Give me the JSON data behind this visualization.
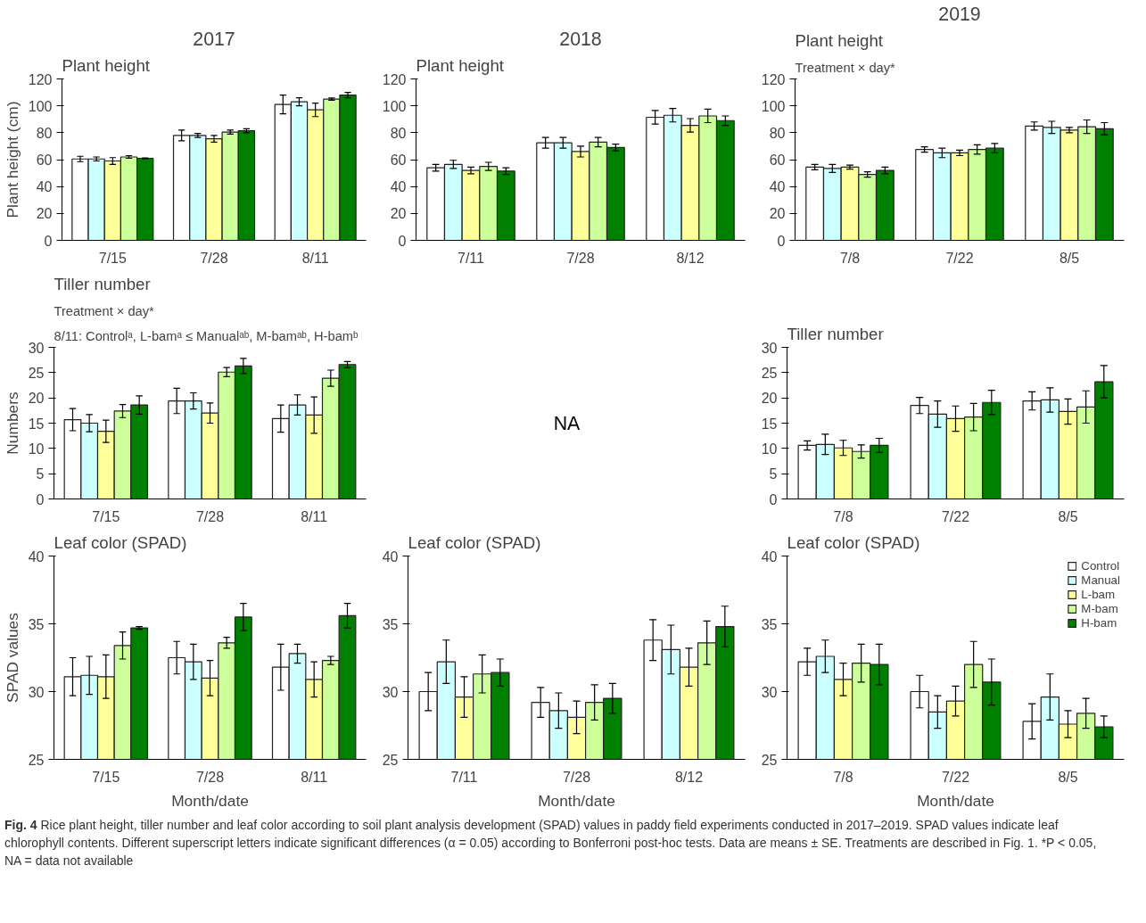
{
  "chart_data": [
    {
      "type": "bar",
      "title": "2017",
      "subtitle": "Plant height",
      "ylabel": "Plant height (cm)",
      "categories": [
        "7/15",
        "7/28",
        "8/11"
      ],
      "ylim": [
        0,
        120
      ],
      "yticks": [
        0,
        20,
        40,
        60,
        80,
        100,
        120
      ],
      "series": [
        {
          "color": "#ffffff",
          "values": [
            60.5,
            78,
            101
          ],
          "errors": [
            2,
            4,
            7
          ]
        },
        {
          "color": "#ccffff",
          "values": [
            60.5,
            78,
            103
          ],
          "errors": [
            1.5,
            1.5,
            3
          ]
        },
        {
          "color": "#ffff99",
          "values": [
            59,
            75.5,
            97
          ],
          "errors": [
            2.5,
            2.5,
            5
          ]
        },
        {
          "color": "#ccff99",
          "values": [
            62,
            80.5,
            105
          ],
          "errors": [
            1,
            1.5,
            0.8
          ]
        },
        {
          "color": "#008000",
          "values": [
            61,
            81.5,
            108
          ],
          "errors": [
            0.3,
            1.5,
            2
          ]
        }
      ]
    },
    {
      "type": "bar",
      "title": "2018",
      "subtitle": "Plant height",
      "categories": [
        "7/11",
        "7/28",
        "8/12"
      ],
      "ylim": [
        0,
        120
      ],
      "yticks": [
        0,
        20,
        40,
        60,
        80,
        100,
        120
      ],
      "series": [
        {
          "color": "#ffffff",
          "values": [
            54,
            72.5,
            91.5
          ],
          "errors": [
            2.5,
            4,
            5
          ]
        },
        {
          "color": "#ccffff",
          "values": [
            56.5,
            72.5,
            93
          ],
          "errors": [
            3,
            4,
            5
          ]
        },
        {
          "color": "#ffff99",
          "values": [
            52,
            66,
            85.5
          ],
          "errors": [
            2.5,
            4,
            5
          ]
        },
        {
          "color": "#ccff99",
          "values": [
            55,
            73,
            92.5
          ],
          "errors": [
            3,
            3.5,
            5
          ]
        },
        {
          "color": "#008000",
          "values": [
            51.5,
            69,
            89
          ],
          "errors": [
            2.5,
            2.5,
            3.5
          ]
        }
      ]
    },
    {
      "type": "bar",
      "title": "2019",
      "subtitle": "Plant height",
      "annotations": [
        "Treatment × day*"
      ],
      "categories": [
        "7/8",
        "7/22",
        "8/5"
      ],
      "ylim": [
        0,
        120
      ],
      "yticks": [
        0,
        20,
        40,
        60,
        80,
        100,
        120
      ],
      "series": [
        {
          "color": "#ffffff",
          "values": [
            54.5,
            67.5,
            85
          ],
          "errors": [
            2,
            2,
            3
          ]
        },
        {
          "color": "#ccffff",
          "values": [
            53.5,
            65,
            84
          ],
          "errors": [
            3,
            3.5,
            4.5
          ]
        },
        {
          "color": "#ffff99",
          "values": [
            54.5,
            65,
            82
          ],
          "errors": [
            1.5,
            2,
            2
          ]
        },
        {
          "color": "#ccff99",
          "values": [
            49,
            67.5,
            84.5
          ],
          "errors": [
            2,
            3.5,
            5
          ]
        },
        {
          "color": "#008000",
          "values": [
            52,
            68.5,
            83
          ],
          "errors": [
            2.5,
            3.5,
            4.5
          ]
        }
      ]
    },
    {
      "type": "bar",
      "title": "Tiller number",
      "ylabel": "Numbers",
      "annotations": [
        "Treatment × day*",
        "8/11: Controlᵃ, L-bamᵃ ≤ Manualᵃᵇ, M-bamᵃᵇ, H-bamᵇ"
      ],
      "categories": [
        "7/15",
        "7/28",
        "8/11"
      ],
      "ylim": [
        0,
        30
      ],
      "yticks": [
        0,
        5,
        10,
        15,
        20,
        25,
        30
      ],
      "series": [
        {
          "color": "#ffffff",
          "values": [
            15.7,
            19.4,
            15.9
          ],
          "errors": [
            2.2,
            2.5,
            2.7
          ]
        },
        {
          "color": "#ccffff",
          "values": [
            15,
            19.4,
            18.6
          ],
          "errors": [
            1.7,
            1.6,
            2
          ]
        },
        {
          "color": "#ffff99",
          "values": [
            13.4,
            17,
            16.6
          ],
          "errors": [
            2.2,
            2,
            3.6
          ]
        },
        {
          "color": "#ccff99",
          "values": [
            17.4,
            25.1,
            23.9
          ],
          "errors": [
            1.3,
            0.9,
            1.6
          ]
        },
        {
          "color": "#008000",
          "values": [
            18.6,
            26.3,
            26.6
          ],
          "errors": [
            1.8,
            1.5,
            0.6
          ]
        }
      ]
    },
    {
      "type": "other",
      "annotations": [
        "NA"
      ]
    },
    {
      "type": "bar",
      "title": "Tiller number",
      "categories": [
        "7/8",
        "7/22",
        "8/5"
      ],
      "ylim": [
        0,
        30
      ],
      "yticks": [
        0,
        5,
        10,
        15,
        20,
        25,
        30
      ],
      "series": [
        {
          "color": "#ffffff",
          "values": [
            10.6,
            18.5,
            19.4
          ],
          "errors": [
            0.9,
            1.6,
            1.8
          ]
        },
        {
          "color": "#ccffff",
          "values": [
            10.8,
            16.8,
            19.6
          ],
          "errors": [
            2,
            2.6,
            2.4
          ]
        },
        {
          "color": "#ffff99",
          "values": [
            10.1,
            15.9,
            17.3
          ],
          "errors": [
            1.5,
            2.5,
            2.5
          ]
        },
        {
          "color": "#ccff99",
          "values": [
            9.4,
            16.2,
            18.2
          ],
          "errors": [
            1.3,
            2.7,
            3.2
          ]
        },
        {
          "color": "#008000",
          "values": [
            10.6,
            19.1,
            23.2
          ],
          "errors": [
            1.4,
            2.4,
            3.2
          ]
        }
      ]
    },
    {
      "type": "bar",
      "title": "Leaf color (SPAD)",
      "xlabel": "Month/date",
      "ylabel": "SPAD values",
      "categories": [
        "7/15",
        "7/28",
        "8/11"
      ],
      "ylim": [
        25,
        40
      ],
      "yticks": [
        25,
        30,
        35,
        40
      ],
      "series": [
        {
          "color": "#ffffff",
          "values": [
            31.1,
            32.5,
            31.8
          ],
          "errors": [
            1.4,
            1.2,
            1.7
          ]
        },
        {
          "color": "#ccffff",
          "values": [
            31.2,
            32.2,
            32.8
          ],
          "errors": [
            1.4,
            1.3,
            0.7
          ]
        },
        {
          "color": "#ffff99",
          "values": [
            31.1,
            31,
            30.9
          ],
          "errors": [
            1.6,
            1.3,
            1.3
          ]
        },
        {
          "color": "#ccff99",
          "values": [
            33.4,
            33.6,
            32.3
          ],
          "errors": [
            1,
            0.4,
            0.3
          ]
        },
        {
          "color": "#008000",
          "values": [
            34.7,
            35.5,
            35.6
          ],
          "errors": [
            0.1,
            1,
            0.9
          ]
        }
      ]
    },
    {
      "type": "bar",
      "title": "Leaf color (SPAD)",
      "xlabel": "Month/date",
      "categories": [
        "7/11",
        "7/28",
        "8/12"
      ],
      "ylim": [
        25,
        40
      ],
      "yticks": [
        25,
        30,
        35,
        40
      ],
      "series": [
        {
          "color": "#ffffff",
          "values": [
            30,
            29.2,
            33.8
          ],
          "errors": [
            1.4,
            1.1,
            1.5
          ]
        },
        {
          "color": "#ccffff",
          "values": [
            32.2,
            28.6,
            33.1
          ],
          "errors": [
            1.6,
            1.3,
            1.8
          ]
        },
        {
          "color": "#ffff99",
          "values": [
            29.6,
            28.1,
            31.8
          ],
          "errors": [
            1.5,
            1.2,
            1.4
          ]
        },
        {
          "color": "#ccff99",
          "values": [
            31.3,
            29.2,
            33.6
          ],
          "errors": [
            1.4,
            1.3,
            1.6
          ]
        },
        {
          "color": "#008000",
          "values": [
            31.4,
            29.5,
            34.8
          ],
          "errors": [
            1,
            1.1,
            1.5
          ]
        }
      ]
    },
    {
      "type": "bar",
      "title": "Leaf color (SPAD)",
      "xlabel": "Month/date",
      "categories": [
        "7/8",
        "7/22",
        "8/5"
      ],
      "ylim": [
        25,
        40
      ],
      "yticks": [
        25,
        30,
        35,
        40
      ],
      "legend": "top right",
      "annotations": [
        "Fig. 4",
        "Rice plant height, tiller number and leaf color according to soil plant analysis development (SPAD) values in paddy field experiments conducted in 2017–2019. SPAD values indicate leaf chlorophyll contents. Different superscript letters indicate significant differences (α = 0.05) according to Bonferroni post-hoc tests. Data are means ± SE. Treatments are described in Fig. 1. *P < 0.05, NA = data not available"
      ],
      "series": [
        {
          "name": "Control",
          "color": "#ffffff",
          "values": [
            32.2,
            30,
            27.8
          ],
          "errors": [
            1,
            1.2,
            1.3
          ]
        },
        {
          "name": "Manual",
          "color": "#ccffff",
          "values": [
            32.6,
            28.5,
            29.6
          ],
          "errors": [
            1.2,
            1.2,
            1.7
          ]
        },
        {
          "name": "L-bam",
          "color": "#ffff99",
          "values": [
            30.9,
            29.3,
            27.6
          ],
          "errors": [
            1.2,
            1.1,
            1
          ]
        },
        {
          "name": "M-bam",
          "color": "#ccff99",
          "values": [
            32.1,
            32,
            28.4
          ],
          "errors": [
            1.4,
            1.7,
            1.1
          ]
        },
        {
          "name": "H-bam",
          "color": "#008000",
          "values": [
            32,
            30.7,
            27.4
          ],
          "errors": [
            1.5,
            1.7,
            0.8
          ]
        }
      ]
    }
  ]
}
